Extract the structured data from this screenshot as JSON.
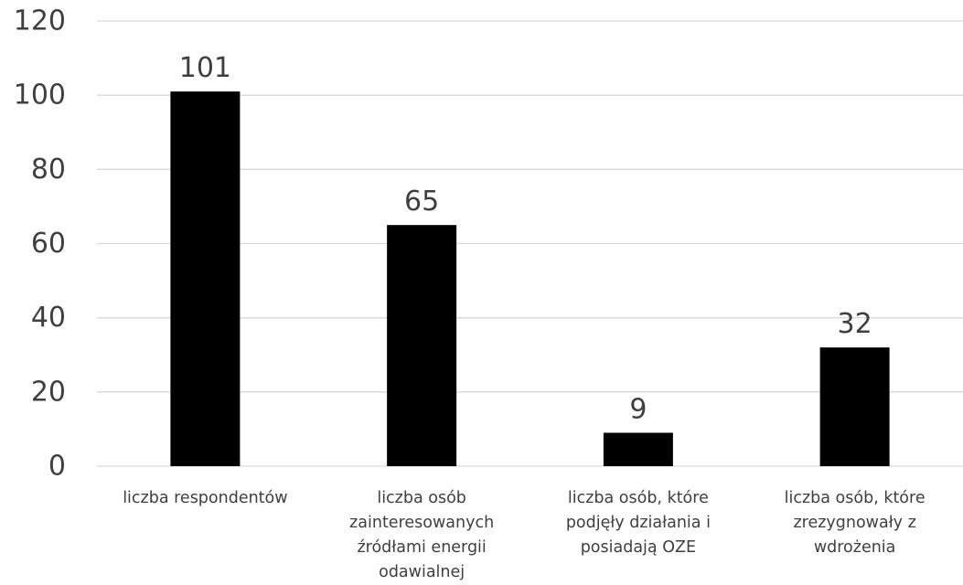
{
  "chart_data": {
    "type": "bar",
    "title": "",
    "xlabel": "",
    "ylabel": "",
    "categories": [
      [
        "liczba respondentów"
      ],
      [
        "liczba osób",
        "zainteresowanych",
        "źródłami energii",
        "odawialnej"
      ],
      [
        "liczba osób, które",
        "podjęły działania i",
        "posiadają  OZE"
      ],
      [
        "liczba osób, które",
        "zrezygnowały z",
        "wdrożenia"
      ]
    ],
    "values": [
      101,
      65,
      9,
      32
    ],
    "data_labels": [
      "101",
      "65",
      "9",
      "32"
    ],
    "ylim": [
      0,
      120
    ],
    "yticks": [
      "0",
      "20",
      "40",
      "60",
      "80",
      "100",
      "120"
    ],
    "grid": true,
    "legend": "none",
    "colors": {
      "bar": "#000000",
      "grid": "#d9d9d9",
      "text": "#3f3f3f"
    }
  }
}
